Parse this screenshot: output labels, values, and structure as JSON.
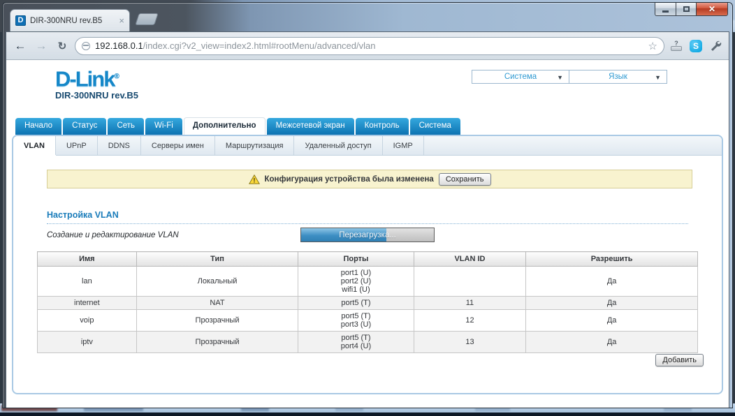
{
  "browser": {
    "tab_title": "DIR-300NRU rev.B5",
    "favicon_letter": "D",
    "new_tab_hint": "",
    "url": {
      "host": "192.168.0.1",
      "path": "/index.cgi?v2_view=index2.html#rootMenu/advanced/vlan"
    },
    "icons": {
      "back": "back-arrow",
      "forward": "forward-arrow",
      "reload": "reload",
      "site": "globe",
      "bookmark": "star",
      "extension1": "question-session",
      "extension2": "skype",
      "menu": "wrench",
      "window": [
        "minimize",
        "maximize",
        "close"
      ]
    },
    "glyphs": {
      "back": "←",
      "forward": "→",
      "reload": "↻",
      "star": "☆",
      "close_tab": "×",
      "close_window": "✕",
      "skype": "S",
      "question": "?",
      "dropdown_arrow": "▼"
    }
  },
  "page": {
    "brand": {
      "logo": "D-Link",
      "reg": "®",
      "model": "DIR-300NRU rev.B5"
    },
    "top_menus": [
      {
        "label": "Система"
      },
      {
        "label": "Язык"
      }
    ],
    "nav": {
      "active": "Дополнительно",
      "tabs": [
        "Начало",
        "Статус",
        "Сеть",
        "Wi-Fi",
        "Дополнительно",
        "Межсетевой экран",
        "Контроль",
        "Система"
      ]
    },
    "subnav": {
      "active": "VLAN",
      "tabs": [
        "VLAN",
        "UPnP",
        "DDNS",
        "Серверы имен",
        "Маршрутизация",
        "Удаленный доступ",
        "IGMP"
      ]
    },
    "notice": {
      "text": "Конфигурация устройства была изменена",
      "save_button": "Сохранить"
    },
    "section": {
      "title": "Настройка VLAN",
      "subtitle": "Создание и редактирование VLAN",
      "progress_button": "Перезагрузка..."
    },
    "table": {
      "headers": [
        "Имя",
        "Тип",
        "Порты",
        "VLAN ID",
        "Разрешить"
      ],
      "rows": [
        {
          "name": "lan",
          "type": "Локальный",
          "ports": [
            "port1 (U)",
            "port2 (U)",
            "wifi1 (U)"
          ],
          "vlan_id": "",
          "enabled": "Да"
        },
        {
          "name": "internet",
          "type": "NAT",
          "ports": [
            "port5 (T)"
          ],
          "vlan_id": "11",
          "enabled": "Да"
        },
        {
          "name": "voip",
          "type": "Прозрачный",
          "ports": [
            "port5 (T)",
            "port3 (U)"
          ],
          "vlan_id": "12",
          "enabled": "Да"
        },
        {
          "name": "iptv",
          "type": "Прозрачный",
          "ports": [
            "port5 (T)",
            "port4 (U)"
          ],
          "vlan_id": "13",
          "enabled": "Да"
        }
      ]
    },
    "add_button": "Добавить"
  },
  "colors": {
    "accent_blue": "#1587c8",
    "tab_blue_top": "#35a8de",
    "tab_blue_bottom": "#0d73b2",
    "panel_border": "#a9c9e4",
    "warning_bg": "#f8f3cf",
    "warning_border": "#d6cd96",
    "heading_blue": "#1a7cba",
    "menu_link_blue": "#2f9ad2",
    "close_button_red": "#c24a32",
    "progress_fill_blue": "#3e8fc4",
    "row_stripe": "#f2f2f2"
  }
}
